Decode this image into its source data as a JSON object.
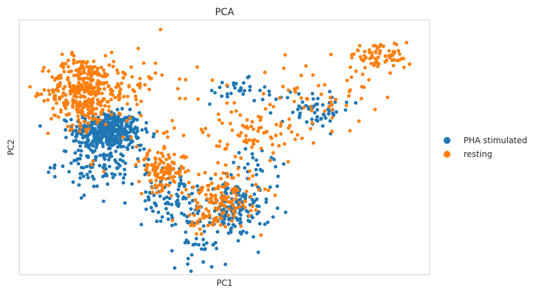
{
  "chart_data": {
    "type": "scatter",
    "title": "PCA",
    "xlabel": "PC1",
    "ylabel": "PC2",
    "xlim": [
      -1.05,
      1.05
    ],
    "ylim": [
      -1.1,
      1.05
    ],
    "grid": false,
    "ticks": false,
    "legend_placement": "right",
    "series": [
      {
        "name": "PHA stimulated",
        "color": "#1f77b4",
        "clusters": [
          {
            "cx": -0.6,
            "cy": 0.12,
            "sx": 0.085,
            "sy": 0.075,
            "n": 380
          },
          {
            "cx": -0.62,
            "cy": -0.15,
            "sx": 0.12,
            "sy": 0.12,
            "n": 140
          },
          {
            "cx": -0.28,
            "cy": -0.45,
            "sx": 0.07,
            "sy": 0.12,
            "n": 80
          },
          {
            "cx": 0.05,
            "cy": -0.55,
            "sx": 0.09,
            "sy": 0.12,
            "n": 150
          },
          {
            "cx": -0.13,
            "cy": -0.85,
            "sx": 0.06,
            "sy": 0.1,
            "n": 30
          },
          {
            "cx": 0.05,
            "cy": 0.45,
            "sx": 0.08,
            "sy": 0.05,
            "n": 30
          },
          {
            "cx": 0.45,
            "cy": 0.3,
            "sx": 0.1,
            "sy": 0.08,
            "n": 60
          },
          {
            "cx": 0.18,
            "cy": -0.15,
            "sx": 0.07,
            "sy": 0.1,
            "n": 25
          }
        ]
      },
      {
        "name": "resting",
        "color": "#ff7f0e",
        "clusters": [
          {
            "cx": -0.73,
            "cy": 0.45,
            "sx": 0.085,
            "sy": 0.15,
            "n": 320
          },
          {
            "cx": -0.55,
            "cy": 0.5,
            "sx": 0.1,
            "sy": 0.12,
            "n": 80
          },
          {
            "cx": -0.32,
            "cy": -0.22,
            "sx": 0.06,
            "sy": 0.08,
            "n": 120
          },
          {
            "cx": 0.0,
            "cy": -0.42,
            "sx": 0.09,
            "sy": 0.12,
            "n": 120
          },
          {
            "cx": -0.08,
            "cy": -0.65,
            "sx": 0.06,
            "sy": 0.08,
            "n": 40
          },
          {
            "cx": 0.8,
            "cy": 0.75,
            "sx": 0.08,
            "sy": 0.06,
            "n": 70
          },
          {
            "cx": 0.45,
            "cy": 0.4,
            "sx": 0.15,
            "sy": 0.15,
            "n": 60
          },
          {
            "cx": 0.15,
            "cy": 0.1,
            "sx": 0.12,
            "sy": 0.1,
            "n": 60
          },
          {
            "cx": -0.35,
            "cy": 0.25,
            "sx": 0.25,
            "sy": 0.25,
            "n": 50
          }
        ]
      }
    ]
  }
}
